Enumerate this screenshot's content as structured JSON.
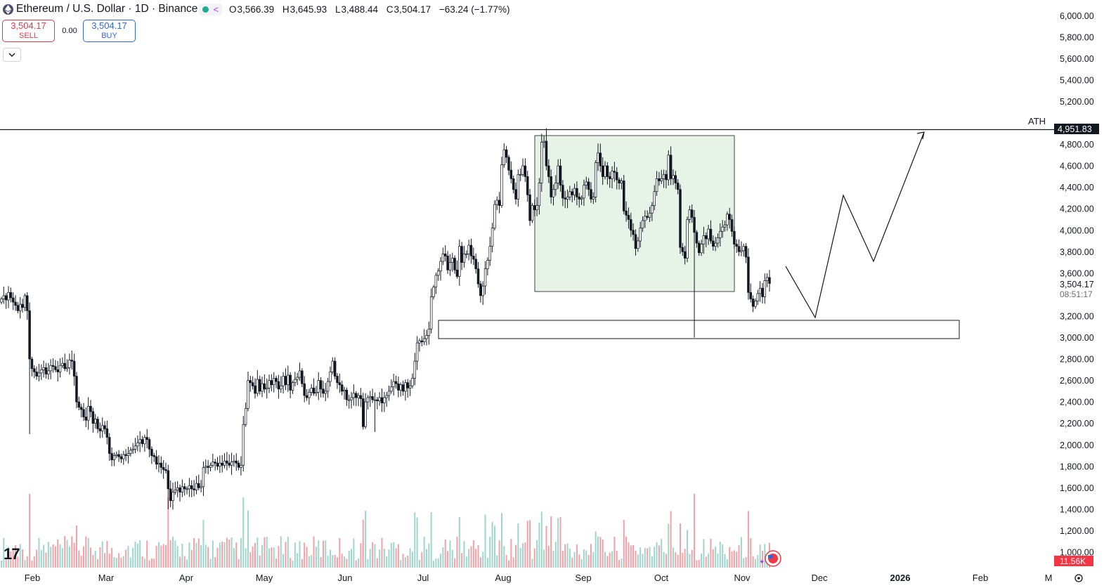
{
  "header": {
    "title": "Ethereum / U.S. Dollar · 1D · Binance",
    "ohlc": [
      {
        "k": "O",
        "v": "3,566.39"
      },
      {
        "k": "H",
        "v": "3,645.93"
      },
      {
        "k": "L",
        "v": "3,488.44"
      },
      {
        "k": "C",
        "v": "3,504.17"
      }
    ],
    "change": "−63.24 (−1.77%)"
  },
  "trade": {
    "sell_price": "3,504.17",
    "sell_label": "SELL",
    "spread": "0.00",
    "buy_price": "3,504.17",
    "buy_label": "BUY"
  },
  "colors": {
    "up": "#22ab94",
    "down": "#f23645",
    "candle": "#131722",
    "box_fill": "#e6f3e6",
    "badge_dark": "#131722",
    "volume_badge": "#f23645"
  },
  "chart_data": {
    "type": "candlestick",
    "symbol": "ETHUSD",
    "timeframe": "1D",
    "ylim": [
      1000,
      6000
    ],
    "y_ticks": [
      "6,000.00",
      "5,800.00",
      "5,600.00",
      "5,400.00",
      "5,200.00",
      "4,800.00",
      "4,600.00",
      "4,400.00",
      "4,200.00",
      "4,000.00",
      "3,800.00",
      "3,600.00",
      "3,200.00",
      "3,000.00",
      "2,800.00",
      "2,600.00",
      "2,400.00",
      "2,200.00",
      "2,000.00",
      "1,800.00",
      "1,600.00",
      "1,400.00",
      "1,200.00",
      "1,000.00"
    ],
    "x_ticks": [
      "Feb",
      "Mar",
      "Apr",
      "May",
      "Jun",
      "Jul",
      "Aug",
      "Sep",
      "Oct",
      "Nov",
      "Dec",
      "2026",
      "Feb",
      "M"
    ],
    "daily_closes": [
      3360,
      3390,
      3350,
      3420,
      3370,
      3330,
      3300,
      3250,
      3310,
      3280,
      3390,
      3250,
      2800,
      2710,
      2680,
      2640,
      2670,
      2700,
      2720,
      2660,
      2690,
      2740,
      2730,
      2700,
      2680,
      2740,
      2760,
      2710,
      2720,
      2790,
      2780,
      2640,
      2400,
      2350,
      2330,
      2260,
      2230,
      2360,
      2310,
      2200,
      2240,
      2150,
      2130,
      2180,
      2150,
      2070,
      1920,
      1860,
      1900,
      1910,
      1890,
      1870,
      1910,
      1900,
      1920,
      1950,
      1960,
      1990,
      2020,
      2050,
      2010,
      2070,
      2050,
      1960,
      1900,
      1890,
      1820,
      1830,
      1790,
      1770,
      1760,
      1590,
      1480,
      1560,
      1580,
      1600,
      1560,
      1610,
      1590,
      1590,
      1620,
      1590,
      1580,
      1640,
      1600,
      1610,
      1790,
      1800,
      1790,
      1810,
      1840,
      1830,
      1800,
      1830,
      1810,
      1850,
      1830,
      1810,
      1840,
      1850,
      1830,
      1790,
      1810,
      2190,
      2340,
      2600,
      2580,
      2550,
      2480,
      2610,
      2500,
      2570,
      2520,
      2530,
      2600,
      2560,
      2620,
      2590,
      2520,
      2550,
      2640,
      2560,
      2650,
      2510,
      2580,
      2610,
      2630,
      2690,
      2570,
      2460,
      2440,
      2490,
      2530,
      2480,
      2490,
      2600,
      2520,
      2480,
      2500,
      2590,
      2680,
      2780,
      2640,
      2580,
      2560,
      2500,
      2510,
      2420,
      2420,
      2440,
      2480,
      2440,
      2460,
      2430,
      2170,
      2400,
      2440,
      2450,
      2420,
      2420,
      2410,
      2440,
      2390,
      2440,
      2460,
      2500,
      2540,
      2590,
      2570,
      2510,
      2560,
      2500,
      2580,
      2530,
      2550,
      2620,
      2780,
      2950,
      2970,
      2960,
      2990,
      3020,
      3080,
      3380,
      3470,
      3580,
      3620,
      3710,
      3780,
      3760,
      3630,
      3700,
      3740,
      3630,
      3570,
      3850,
      3700,
      3780,
      3780,
      3860,
      3760,
      3730,
      3640,
      3500,
      3390,
      3480,
      3640,
      3720,
      3850,
      4020,
      4240,
      4280,
      4230,
      4610,
      4750,
      4680,
      4560,
      4480,
      4380,
      4290,
      4520,
      4520,
      4600,
      4500,
      4330,
      4090,
      4230,
      4190,
      4230,
      4440,
      4820,
      4830,
      4600,
      4500,
      4310,
      4380,
      4440,
      4600,
      4420,
      4300,
      4290,
      4310,
      4360,
      4330,
      4390,
      4310,
      4290,
      4300,
      4420,
      4450,
      4380,
      4290,
      4310,
      4630,
      4720,
      4600,
      4500,
      4600,
      4500,
      4480,
      4550,
      4540,
      4470,
      4440,
      4460,
      4180,
      4140,
      4100,
      4000,
      3960,
      3830,
      3900,
      4020,
      4090,
      4130,
      4120,
      4160,
      4230,
      4360,
      4480,
      4460,
      4480,
      4520,
      4470,
      4700,
      4480,
      4510,
      4440,
      4380,
      3840,
      3800,
      3740,
      4100,
      4190,
      4120,
      3980,
      3880,
      3790,
      3870,
      3950,
      3920,
      4010,
      3900,
      3850,
      3880,
      3930,
      3990,
      4030,
      4050,
      4150,
      4100,
      3990,
      3870,
      3850,
      3800,
      3810,
      3850,
      3750,
      3420,
      3360,
      3290,
      3340,
      3410,
      3460,
      3380,
      3530,
      3560,
      3504.17
    ],
    "last_price": "3,504.17",
    "countdown": "08:51:17",
    "ath_label": "ATH",
    "ath_value": "4,951.83",
    "volume_value": "11.56K"
  }
}
